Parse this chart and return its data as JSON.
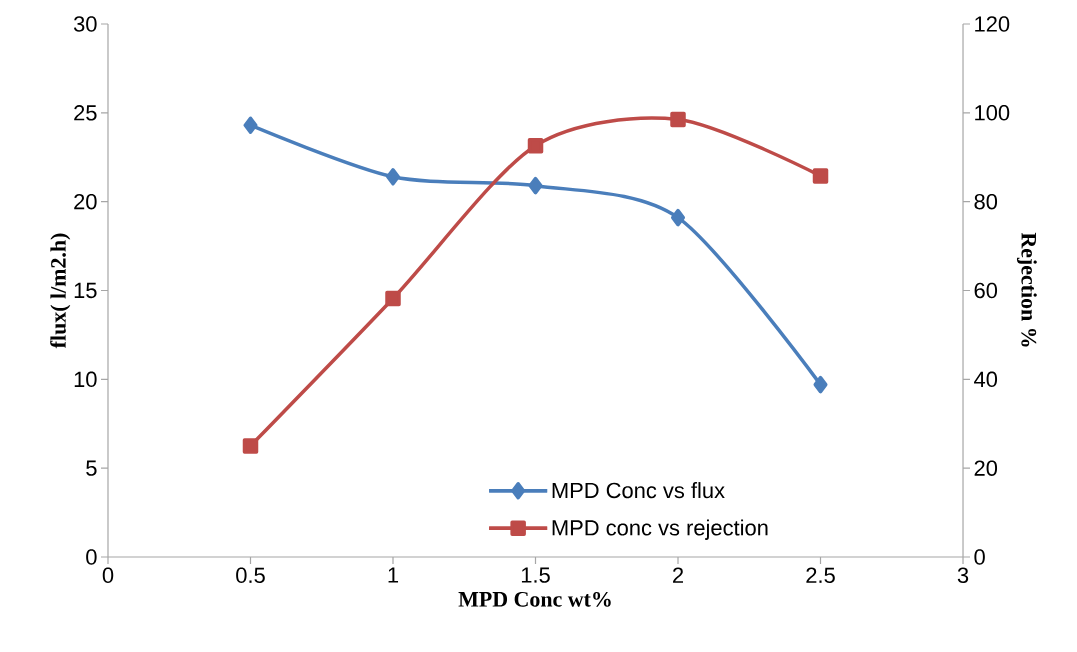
{
  "chart_data": {
    "type": "line",
    "xlabel": "MPD Conc wt%",
    "ylabel": "flux( l/m2.h)",
    "y2label": "Rejection %",
    "x": [
      0.5,
      1,
      1.5,
      2,
      2.5
    ],
    "xlim": [
      0,
      3
    ],
    "xticks": [
      0,
      0.5,
      1,
      1.5,
      2,
      2.5,
      3
    ],
    "ylim": [
      0,
      30
    ],
    "yticks": [
      0,
      5,
      10,
      15,
      20,
      25,
      30
    ],
    "y2lim": [
      0,
      120
    ],
    "y2ticks": [
      0,
      20,
      40,
      60,
      80,
      100,
      120
    ],
    "legend": "bottom right",
    "line_style": "solid",
    "series": [
      {
        "name": "MPD Conc vs flux",
        "color": "#4a7ebb",
        "marker": "diamond",
        "values": [
          24.3,
          21.4,
          20.9,
          19.1,
          9.7
        ]
      },
      {
        "name": "MPD conc vs rejection",
        "color": "#be4b48",
        "marker": "square",
        "axis": "y2",
        "values": [
          25,
          58.2,
          92.6,
          98.5,
          85.8
        ]
      }
    ]
  }
}
